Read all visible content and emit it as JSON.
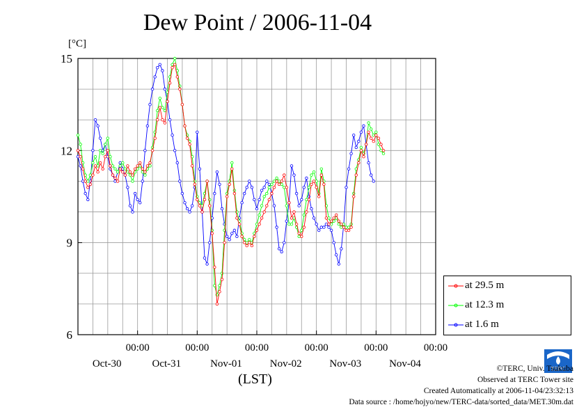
{
  "chart_data": {
    "type": "line",
    "title": "Dew Point / 2006-11-04",
    "ylabel": "[°C]",
    "xlabel": "(LST)",
    "ylim": [
      6,
      15
    ],
    "yticks": [
      "6",
      "9",
      "12",
      "15"
    ],
    "xlim": [
      -1.0,
      5.0
    ],
    "xtick_time_label": "00:00",
    "xticks": [
      {
        "x": 0,
        "time": "00:00",
        "date": "Oct-30"
      },
      {
        "x": 1,
        "time": "00:00",
        "date": "Oct-31"
      },
      {
        "x": 2,
        "time": "00:00",
        "date": "Nov-01"
      },
      {
        "x": 3,
        "time": "00:00",
        "date": "Nov-02"
      },
      {
        "x": 4,
        "time": "00:00",
        "date": "Nov-03"
      },
      {
        "x": 5,
        "time": "00:00",
        "date": "Nov-04"
      }
    ],
    "grid": true,
    "legend_position": "right",
    "series": [
      {
        "name": "at 29.5 m",
        "color": "#ff0000",
        "x_step_hours": 1,
        "values": [
          12.0,
          11.8,
          11.4,
          11.0,
          10.8,
          10.9,
          11.2,
          11.5,
          11.3,
          11.6,
          11.4,
          11.8,
          12.0,
          11.5,
          11.2,
          11.1,
          11.0,
          11.4,
          11.3,
          11.2,
          11.5,
          11.3,
          11.2,
          11.4,
          11.5,
          11.6,
          11.4,
          11.3,
          11.5,
          11.6,
          12.0,
          12.4,
          13.0,
          13.4,
          13.0,
          12.9,
          13.6,
          14.2,
          14.7,
          14.8,
          14.4,
          14.0,
          13.5,
          12.8,
          12.4,
          12.2,
          11.5,
          10.9,
          10.4,
          10.2,
          10.0,
          10.4,
          11.0,
          10.2,
          9.3,
          8.2,
          7.0,
          7.4,
          7.8,
          9.0,
          10.5,
          10.9,
          11.4,
          10.6,
          9.8,
          9.6,
          9.2,
          9.0,
          8.9,
          9.0,
          8.9,
          9.2,
          9.4,
          9.6,
          9.8,
          10.0,
          10.2,
          10.4,
          10.6,
          10.8,
          11.0,
          10.9,
          11.0,
          11.2,
          10.8,
          10.3,
          9.8,
          10.0,
          9.6,
          9.3,
          9.2,
          9.5,
          10.0,
          10.4,
          10.9,
          11.0,
          10.8,
          10.5,
          11.2,
          10.9,
          9.8,
          9.6,
          9.7,
          9.8,
          9.9,
          9.7,
          9.6,
          9.5,
          9.4,
          9.4,
          9.5,
          10.5,
          11.2,
          11.6,
          12.0,
          11.8,
          12.2,
          12.6,
          12.4,
          12.3,
          12.5,
          12.4,
          12.2,
          12.0
        ]
      },
      {
        "name": "at 12.3 m",
        "color": "#00ff00",
        "x_step_hours": 1,
        "values": [
          12.5,
          12.2,
          11.6,
          11.2,
          11.0,
          11.2,
          11.6,
          11.8,
          11.5,
          12.0,
          11.9,
          12.2,
          12.4,
          11.8,
          11.5,
          11.4,
          11.3,
          11.5,
          11.6,
          11.4,
          11.3,
          11.2,
          11.0,
          11.3,
          11.4,
          11.5,
          11.3,
          11.2,
          11.4,
          11.5,
          12.1,
          12.6,
          13.3,
          13.7,
          13.4,
          13.3,
          13.9,
          14.4,
          14.8,
          15.0,
          14.6,
          14.1,
          13.5,
          12.8,
          12.5,
          12.3,
          11.8,
          11.0,
          10.5,
          10.3,
          10.2,
          10.6,
          11.0,
          10.4,
          9.4,
          7.6,
          7.3,
          7.6,
          8.0,
          9.4,
          10.6,
          11.0,
          11.6,
          10.7,
          10.0,
          9.7,
          9.3,
          9.1,
          9.0,
          9.1,
          9.0,
          9.3,
          9.6,
          9.9,
          10.2,
          10.5,
          10.6,
          10.8,
          10.9,
          11.0,
          11.1,
          11.0,
          10.9,
          10.8,
          10.2,
          9.6,
          9.6,
          9.8,
          9.5,
          9.2,
          9.4,
          9.9,
          10.4,
          10.8,
          11.2,
          11.3,
          11.0,
          10.6,
          11.4,
          11.0,
          10.2,
          9.8,
          9.6,
          9.7,
          9.8,
          9.6,
          9.5,
          9.6,
          9.5,
          9.5,
          9.6,
          10.6,
          11.4,
          11.7,
          12.1,
          11.9,
          12.2,
          12.9,
          12.7,
          12.5,
          12.6,
          12.2,
          12.0,
          11.9
        ]
      },
      {
        "name": "at 1.6 m",
        "color": "#0000ff",
        "x_step_hours": 1,
        "values": [
          11.8,
          11.5,
          11.0,
          10.6,
          10.4,
          11.0,
          12.0,
          13.0,
          12.8,
          12.4,
          12.0,
          12.2,
          11.8,
          11.4,
          11.2,
          11.0,
          11.3,
          11.6,
          11.4,
          11.2,
          10.8,
          10.2,
          10.0,
          10.6,
          10.4,
          10.3,
          11.0,
          12.0,
          12.8,
          13.5,
          14.0,
          14.4,
          14.7,
          14.8,
          14.6,
          14.0,
          13.6,
          13.0,
          12.5,
          12.0,
          11.6,
          11.0,
          10.6,
          10.3,
          10.1,
          10.0,
          10.2,
          10.8,
          12.6,
          11.4,
          10.0,
          8.5,
          8.3,
          9.0,
          9.8,
          10.6,
          11.3,
          10.9,
          10.1,
          9.6,
          9.2,
          9.1,
          9.3,
          9.4,
          9.2,
          9.8,
          10.3,
          10.6,
          10.8,
          11.0,
          10.8,
          10.4,
          10.1,
          10.4,
          10.7,
          10.8,
          11.0,
          10.9,
          10.6,
          10.2,
          9.5,
          8.8,
          8.7,
          9.0,
          9.7,
          10.3,
          11.5,
          11.2,
          10.6,
          10.2,
          10.4,
          10.8,
          11.1,
          10.5,
          10.1,
          9.8,
          9.6,
          9.4,
          9.5,
          9.5,
          9.6,
          9.5,
          9.4,
          9.0,
          8.6,
          8.3,
          8.8,
          9.6,
          10.8,
          11.4,
          11.9,
          12.5,
          12.1,
          12.3,
          12.6,
          12.8,
          12.2,
          11.6,
          11.2,
          11.0
        ]
      }
    ]
  },
  "legend": {
    "items": [
      {
        "label": "at 29.5 m",
        "color": "#ff0000"
      },
      {
        "label": "at 12.3 m",
        "color": "#00ff00"
      },
      {
        "label": "at 1.6 m",
        "color": "#0000ff"
      }
    ]
  },
  "credits": {
    "line1": "©TERC, Univ. Tsukuba",
    "line2": "Observed at TERC Tower site",
    "line3": "Created Automatically at 2006-11-04/23:32:13",
    "line4": "Data source : /home/hojyo/new/TERC-data/sorted_data/MET.30m.dat",
    "logo_text": "TERC"
  }
}
